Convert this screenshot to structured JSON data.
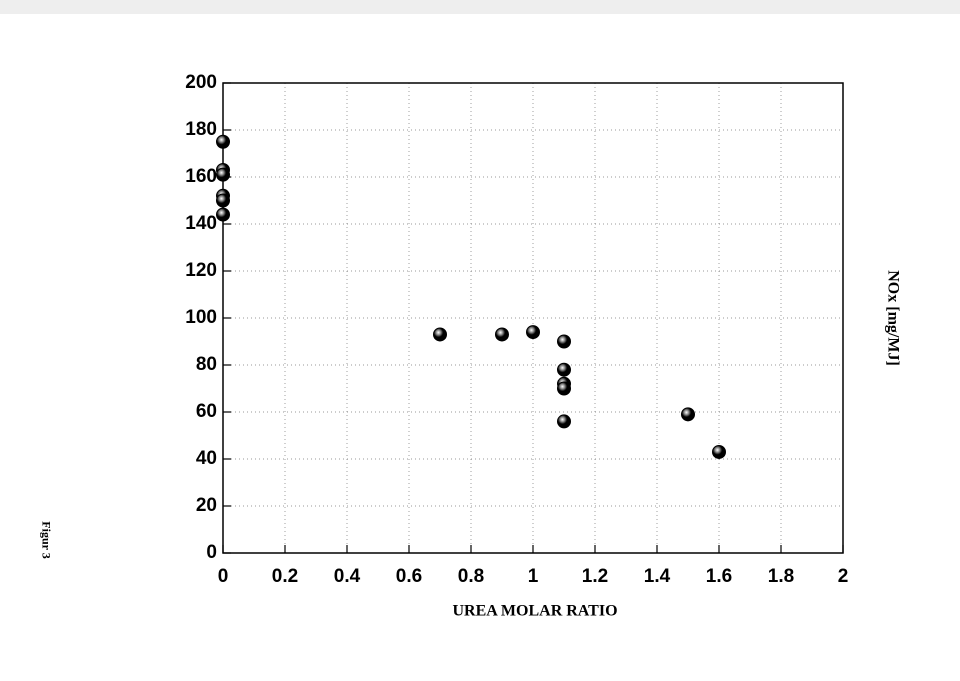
{
  "chart_data": {
    "type": "scatter",
    "figure_label": "Figur 3",
    "x_label": "UREA MOLAR RATIO",
    "y_label": "NOx [mg/MJ]",
    "x": [
      0,
      0,
      0,
      0,
      0,
      0,
      0.7,
      0.9,
      1.0,
      1.1,
      1.1,
      1.1,
      1.1,
      1.1,
      1.5,
      1.6
    ],
    "y": [
      175,
      163,
      161,
      152,
      150,
      144,
      93,
      93,
      94,
      90,
      78,
      72,
      70,
      56,
      59,
      43
    ],
    "color": "#000000",
    "xlim": [
      0,
      2
    ],
    "xticks": [
      0,
      0.2,
      0.4,
      0.6,
      0.8,
      1,
      1.2,
      1.4,
      1.6,
      1.8,
      2
    ],
    "ylim": [
      0,
      200
    ],
    "yticks": [
      0,
      20,
      40,
      60,
      80,
      100,
      120,
      140,
      160,
      180,
      200
    ],
    "grid": true
  }
}
